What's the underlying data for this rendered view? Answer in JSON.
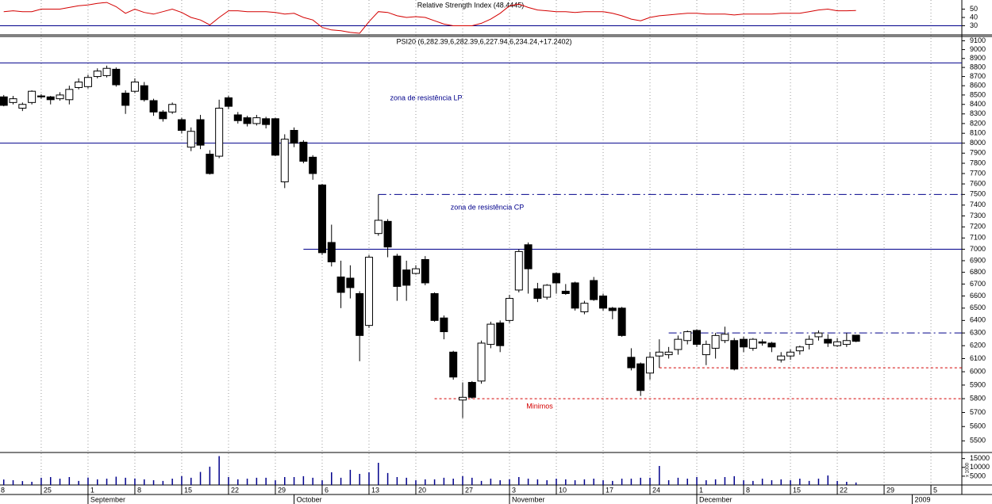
{
  "chart_data": [
    {
      "type": "line",
      "title": "Relative Strength Index (48.4445)",
      "x": [
        0,
        1,
        2,
        3,
        4,
        5,
        6,
        7,
        8,
        9,
        10,
        11,
        12,
        13,
        14,
        15,
        16,
        17,
        18,
        19,
        20,
        21,
        22,
        23,
        24,
        25,
        26,
        27,
        28,
        29,
        30,
        31,
        32,
        33,
        34,
        35,
        36,
        37,
        38,
        39,
        40,
        41,
        42,
        43,
        44,
        45,
        46,
        47,
        48,
        49,
        50,
        51,
        52,
        53,
        54,
        55,
        56,
        57,
        58,
        59,
        60,
        61,
        62,
        63,
        64,
        65,
        66,
        67,
        68,
        69,
        70,
        71,
        72,
        73,
        74,
        75,
        76,
        77,
        78,
        79,
        80,
        81,
        82,
        83,
        84,
        85,
        86,
        87,
        88,
        89,
        90,
        91
      ],
      "values": [
        47,
        48,
        47,
        47,
        50,
        50,
        50,
        52,
        54,
        55,
        57,
        58,
        53,
        45,
        50,
        46,
        44,
        47,
        50,
        46,
        40,
        37,
        31,
        40,
        48,
        48,
        47,
        47,
        47,
        46,
        44,
        45,
        40,
        37,
        28,
        25,
        24,
        22,
        21,
        35,
        47,
        46,
        42,
        40,
        41,
        40,
        36,
        32,
        30,
        30,
        30,
        33,
        38,
        45,
        54,
        56,
        52,
        49,
        48,
        47,
        47,
        46,
        47,
        47,
        47,
        45,
        42,
        38,
        36,
        40,
        42,
        43,
        44,
        45,
        45,
        44,
        44,
        44,
        43,
        44,
        44,
        44,
        44,
        45,
        45,
        45,
        47,
        49,
        50,
        48,
        48,
        48.4445
      ],
      "color": "#d40000",
      "xlim": [
        -0.4,
        102.3
      ],
      "ylim": [
        20,
        61
      ],
      "yticks": [
        30,
        40,
        50
      ],
      "reference_lines": [
        {
          "value": 30,
          "color": "#00008b",
          "style": "solid"
        }
      ]
    },
    {
      "type": "candlestick",
      "title": "PSI20 (6,282.39,6,282.39,6,227.94,6,234.24,+17.2402)",
      "x": [
        0,
        1,
        2,
        3,
        4,
        5,
        6,
        7,
        8,
        9,
        10,
        11,
        12,
        13,
        14,
        15,
        16,
        17,
        18,
        19,
        20,
        21,
        22,
        23,
        24,
        25,
        26,
        27,
        28,
        29,
        30,
        31,
        32,
        33,
        34,
        35,
        36,
        37,
        38,
        39,
        40,
        41,
        42,
        43,
        44,
        45,
        46,
        47,
        48,
        49,
        50,
        51,
        52,
        53,
        54,
        55,
        56,
        57,
        58,
        59,
        60,
        61,
        62,
        63,
        64,
        65,
        66,
        67,
        68,
        69,
        70,
        71,
        72,
        73,
        74,
        75,
        76,
        77,
        78,
        79,
        80,
        81,
        82,
        83,
        84,
        85,
        86,
        87,
        88,
        89,
        90,
        91
      ],
      "open": [
        8480,
        8420,
        8360,
        8420,
        8490,
        8480,
        8460,
        8450,
        8580,
        8590,
        8700,
        8710,
        8780,
        8520,
        8540,
        8600,
        8440,
        8320,
        8320,
        8240,
        7960,
        8240,
        7890,
        7870,
        8470,
        8290,
        8260,
        8200,
        8250,
        8250,
        7620,
        8130,
        8010,
        7860,
        7590,
        7060,
        6760,
        6750,
        6620,
        6360,
        7140,
        7250,
        6940,
        6820,
        6790,
        6910,
        6620,
        6420,
        6150,
        5790,
        5920,
        5930,
        6210,
        6380,
        6400,
        6650,
        7040,
        6660,
        6590,
        6790,
        6640,
        6710,
        6470,
        6730,
        6600,
        6500,
        6500,
        6110,
        6060,
        5990,
        6120,
        6130,
        6170,
        6240,
        6320,
        6130,
        6180,
        6240,
        6240,
        6250,
        6180,
        6230,
        6220,
        6090,
        6120,
        6160,
        6210,
        6270,
        6250,
        6200,
        6210,
        6282.39
      ],
      "high": [
        8500,
        8490,
        8420,
        8550,
        8510,
        8490,
        8530,
        8600,
        8680,
        8720,
        8790,
        8820,
        8800,
        8550,
        8680,
        8640,
        8460,
        8340,
        8420,
        8260,
        8160,
        8290,
        7930,
        8450,
        8490,
        8320,
        8280,
        8290,
        8270,
        8260,
        8090,
        8160,
        8030,
        7880,
        7600,
        7220,
        6900,
        6860,
        6640,
        6950,
        7500,
        7270,
        6960,
        6900,
        6860,
        6940,
        6630,
        6440,
        6160,
        5920,
        5930,
        6240,
        6390,
        6400,
        6610,
        7000,
        7060,
        6710,
        6700,
        6800,
        6700,
        6720,
        6560,
        6760,
        6620,
        6510,
        6510,
        6180,
        6070,
        6150,
        6250,
        6190,
        6280,
        6320,
        6330,
        6240,
        6300,
        6350,
        6260,
        6270,
        6260,
        6250,
        6230,
        6150,
        6170,
        6200,
        6280,
        6320,
        6290,
        6260,
        6300,
        6282.39
      ],
      "low": [
        8380,
        8400,
        8330,
        8400,
        8460,
        8400,
        8440,
        8400,
        8560,
        8570,
        8680,
        8690,
        8590,
        8300,
        8520,
        8430,
        8280,
        8220,
        8300,
        8100,
        7920,
        7940,
        7690,
        7850,
        8350,
        8200,
        8170,
        8180,
        8150,
        7870,
        7560,
        7960,
        7800,
        7640,
        6950,
        6850,
        6500,
        6580,
        6080,
        6340,
        7120,
        6930,
        6560,
        6560,
        6780,
        6690,
        6390,
        6250,
        5940,
        5660,
        5800,
        5910,
        6180,
        6150,
        6380,
        6630,
        6620,
        6550,
        6570,
        6620,
        6610,
        6480,
        6450,
        6560,
        6480,
        6410,
        6270,
        6010,
        5820,
        5940,
        6030,
        6100,
        6130,
        6210,
        6190,
        6050,
        6100,
        6220,
        6010,
        6150,
        6160,
        6200,
        6150,
        6070,
        6090,
        6130,
        6170,
        6240,
        6190,
        6190,
        6190,
        6227.94
      ],
      "close": [
        8390,
        8460,
        8400,
        8540,
        8480,
        8450,
        8500,
        8560,
        8640,
        8690,
        8760,
        8790,
        8610,
        8390,
        8640,
        8450,
        8320,
        8250,
        8400,
        8130,
        8120,
        7980,
        7700,
        8360,
        8380,
        8230,
        8200,
        8260,
        8190,
        7880,
        8040,
        8000,
        7820,
        7700,
        6970,
        6890,
        6630,
        6670,
        6280,
        6930,
        7260,
        7020,
        6680,
        6690,
        6830,
        6710,
        6400,
        6310,
        5960,
        5810,
        5810,
        6220,
        6370,
        6200,
        6580,
        6980,
        6830,
        6580,
        6690,
        6710,
        6620,
        6500,
        6540,
        6570,
        6500,
        6480,
        6280,
        6030,
        5860,
        6110,
        6150,
        6150,
        6250,
        6310,
        6210,
        6210,
        6280,
        6290,
        6020,
        6190,
        6250,
        6220,
        6190,
        6120,
        6150,
        6190,
        6250,
        6300,
        6220,
        6230,
        6240,
        6234.24
      ],
      "color": "#000000",
      "log_scale": true,
      "xlim": [
        -0.4,
        102.3
      ],
      "ylim": [
        5420,
        9150
      ],
      "yticks": [
        5500,
        5600,
        5700,
        5800,
        5900,
        6000,
        6100,
        6200,
        6300,
        6400,
        6500,
        6600,
        6700,
        6800,
        6900,
        7000,
        7100,
        7200,
        7300,
        7400,
        7500,
        7600,
        7700,
        7800,
        7900,
        8000,
        8100,
        8200,
        8300,
        8400,
        8500,
        8600,
        8700,
        8800,
        8900,
        9000,
        9100
      ],
      "reference_lines": [
        {
          "value": 8850,
          "color": "#00008b",
          "style": "solid"
        },
        {
          "value": 8000,
          "color": "#00008b",
          "style": "solid"
        },
        {
          "value": 7000,
          "from": 32,
          "color": "#00008b",
          "style": "solid"
        },
        {
          "value": 7500,
          "from": 40,
          "color": "#00008b",
          "style": "dashdot"
        },
        {
          "value": 6300,
          "from": 71,
          "color": "#00008b",
          "style": "dashdot"
        },
        {
          "value": 6030,
          "from": 70,
          "color": "#d40000",
          "style": "dashed"
        },
        {
          "value": 5800,
          "from": 46,
          "color": "#d40000",
          "style": "dashed"
        }
      ],
      "annotations": [
        "zona de resistência LP",
        "zona de resistência CP",
        "Minimos"
      ]
    },
    {
      "type": "bar",
      "x": [
        0,
        1,
        2,
        3,
        4,
        5,
        6,
        7,
        8,
        9,
        10,
        11,
        12,
        13,
        14,
        15,
        16,
        17,
        18,
        19,
        20,
        21,
        22,
        23,
        24,
        25,
        26,
        27,
        28,
        29,
        30,
        31,
        32,
        33,
        34,
        35,
        36,
        37,
        38,
        39,
        40,
        41,
        42,
        43,
        44,
        45,
        46,
        47,
        48,
        49,
        50,
        51,
        52,
        53,
        54,
        55,
        56,
        57,
        58,
        59,
        60,
        61,
        62,
        63,
        64,
        65,
        66,
        67,
        68,
        69,
        70,
        71,
        72,
        73,
        74,
        75,
        76,
        77,
        78,
        79,
        80,
        81,
        82,
        83,
        84,
        85,
        86,
        87,
        88,
        89,
        90,
        91
      ],
      "values": [
        3100,
        2700,
        2200,
        1800,
        4100,
        4500,
        3600,
        4500,
        2300,
        4200,
        3200,
        3600,
        4700,
        4100,
        3700,
        3200,
        2700,
        2300,
        3600,
        5000,
        4100,
        7400,
        10400,
        16400,
        4500,
        3200,
        3600,
        4100,
        4100,
        2700,
        4500,
        4500,
        5000,
        4100,
        2700,
        7200,
        4100,
        8600,
        6300,
        7200,
        12600,
        6800,
        4500,
        4100,
        2700,
        3200,
        3200,
        4100,
        3600,
        5000,
        4100,
        2300,
        3600,
        2700,
        3200,
        4500,
        3600,
        3200,
        2700,
        3600,
        3200,
        2700,
        3200,
        3600,
        2700,
        2300,
        3600,
        3600,
        4100,
        4100,
        10800,
        2700,
        4100,
        3600,
        4500,
        2700,
        3200,
        4500,
        5000,
        2700,
        2300,
        3600,
        2700,
        3200,
        2700,
        3600,
        2300,
        3600,
        5400,
        2300,
        1800,
        1400
      ],
      "color": "#00008b",
      "unit_label": "x 1000",
      "xlim": [
        -0.4,
        102.3
      ],
      "ylim": [
        0,
        18000
      ],
      "yticks": [
        5000,
        10000,
        15000
      ],
      "xticks": [
        {
          "value": -1,
          "label": "8"
        },
        {
          "value": 4,
          "label": "25"
        },
        {
          "value": 9,
          "label": "1"
        },
        {
          "value": 14,
          "label": "8"
        },
        {
          "value": 19,
          "label": "15"
        },
        {
          "value": 24,
          "label": "22"
        },
        {
          "value": 29,
          "label": "29"
        },
        {
          "value": 34,
          "label": "6"
        },
        {
          "value": 39,
          "label": "13"
        },
        {
          "value": 44,
          "label": "20"
        },
        {
          "value": 49,
          "label": "27"
        },
        {
          "value": 54,
          "label": "3"
        },
        {
          "value": 59,
          "label": "10"
        },
        {
          "value": 64,
          "label": "17"
        },
        {
          "value": 69,
          "label": "24"
        },
        {
          "value": 74,
          "label": "1"
        },
        {
          "value": 79,
          "label": "8"
        },
        {
          "value": 84,
          "label": "15"
        },
        {
          "value": 89,
          "label": "22"
        },
        {
          "value": 94,
          "label": "29"
        },
        {
          "value": 99,
          "label": "5"
        }
      ],
      "month_ticks": [
        {
          "value": 9,
          "label": "September"
        },
        {
          "value": 31,
          "label": "October"
        },
        {
          "value": 54,
          "label": "November"
        },
        {
          "value": 74,
          "label": "December"
        },
        {
          "value": 97,
          "label": "2009"
        }
      ],
      "grid": true
    }
  ]
}
